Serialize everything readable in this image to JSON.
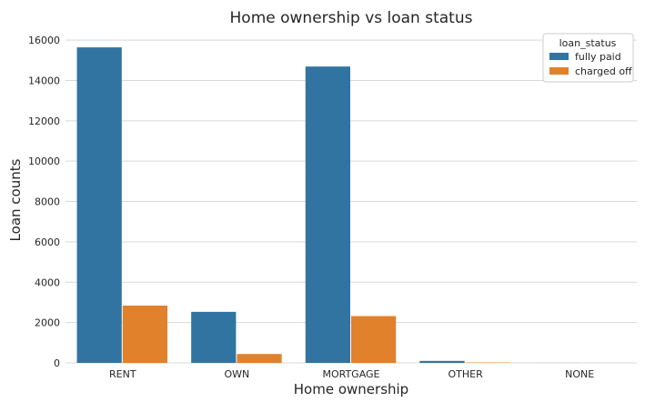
{
  "chart_data": {
    "type": "bar",
    "title": "Home ownership vs loan status",
    "xlabel": "Home ownership",
    "ylabel": "Loan counts",
    "categories": [
      "RENT",
      "OWN",
      "MORTGAGE",
      "OTHER",
      "NONE"
    ],
    "series": [
      {
        "name": "fully paid",
        "color": "#3274a1",
        "values": [
          15640,
          2530,
          14690,
          98,
          3
        ]
      },
      {
        "name": "charged off",
        "color": "#e1812c",
        "values": [
          2840,
          440,
          2320,
          18,
          0
        ]
      }
    ],
    "ylim": [
      0,
      16500
    ],
    "yticks": [
      0,
      2000,
      4000,
      6000,
      8000,
      10000,
      12000,
      14000,
      16000
    ],
    "grid": true,
    "legend": {
      "title": "loan_status",
      "placement": "top-right"
    }
  }
}
